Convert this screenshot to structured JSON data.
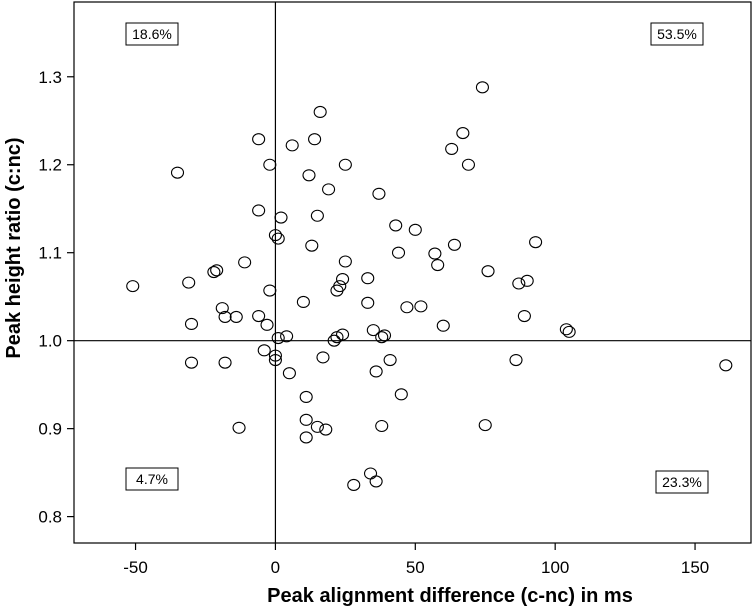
{
  "chart_data": {
    "type": "scatter",
    "xlabel": "Peak alignment difference (c-nc) in ms",
    "ylabel": "Peak height ratio (c:nc)",
    "xlim": [
      -72,
      170
    ],
    "ylim": [
      0.77,
      1.385
    ],
    "xticks": [
      "-50",
      "0",
      "50",
      "100",
      "150"
    ],
    "yticks": [
      "0.8",
      "0.9",
      "1.0",
      "1.1",
      "1.2",
      "1.3"
    ],
    "reference_lines": {
      "x": 0,
      "y": 1.0
    },
    "quadrant_labels": {
      "top_left": "18.6%",
      "top_right": "53.5%",
      "bottom_left": "4.7%",
      "bottom_right": "23.3%"
    },
    "marker": "open-circle",
    "grid": false,
    "points": [
      [
        -51,
        1.062
      ],
      [
        -35,
        1.191
      ],
      [
        -31,
        1.066
      ],
      [
        -30,
        1.019
      ],
      [
        -30,
        0.975
      ],
      [
        -22,
        1.078
      ],
      [
        -21,
        1.08
      ],
      [
        -19,
        1.037
      ],
      [
        -18,
        1.027
      ],
      [
        -18,
        0.975
      ],
      [
        -14,
        1.027
      ],
      [
        -13,
        0.901
      ],
      [
        -11,
        1.089
      ],
      [
        -6,
        1.229
      ],
      [
        -6,
        1.148
      ],
      [
        -6,
        1.028
      ],
      [
        -4,
        0.989
      ],
      [
        -3,
        1.018
      ],
      [
        -2,
        1.057
      ],
      [
        -2,
        1.2
      ],
      [
        0,
        1.12
      ],
      [
        0,
        0.983
      ],
      [
        0,
        0.978
      ],
      [
        1,
        1.003
      ],
      [
        1,
        1.116
      ],
      [
        2,
        1.14
      ],
      [
        4,
        1.005
      ],
      [
        5,
        0.963
      ],
      [
        6,
        1.222
      ],
      [
        10,
        1.044
      ],
      [
        11,
        0.936
      ],
      [
        11,
        0.91
      ],
      [
        11,
        0.89
      ],
      [
        12,
        1.188
      ],
      [
        13,
        1.108
      ],
      [
        14,
        1.229
      ],
      [
        15,
        0.902
      ],
      [
        15,
        1.142
      ],
      [
        16,
        1.26
      ],
      [
        17,
        0.981
      ],
      [
        18,
        0.899
      ],
      [
        19,
        1.172
      ],
      [
        21,
        1.0
      ],
      [
        22,
        1.057
      ],
      [
        22,
        1.004
      ],
      [
        23,
        1.062
      ],
      [
        24,
        1.007
      ],
      [
        24,
        1.07
      ],
      [
        25,
        1.09
      ],
      [
        25,
        1.2
      ],
      [
        28,
        0.836
      ],
      [
        33,
        1.043
      ],
      [
        33,
        1.071
      ],
      [
        34,
        0.849
      ],
      [
        35,
        1.012
      ],
      [
        36,
        0.84
      ],
      [
        36,
        0.965
      ],
      [
        37,
        1.167
      ],
      [
        38,
        1.004
      ],
      [
        38,
        0.903
      ],
      [
        39,
        1.006
      ],
      [
        41,
        0.978
      ],
      [
        43,
        1.131
      ],
      [
        44,
        1.1
      ],
      [
        45,
        0.939
      ],
      [
        47,
        1.038
      ],
      [
        50,
        1.126
      ],
      [
        52,
        1.039
      ],
      [
        57,
        1.099
      ],
      [
        58,
        1.086
      ],
      [
        60,
        1.017
      ],
      [
        63,
        1.218
      ],
      [
        64,
        1.109
      ],
      [
        67,
        1.236
      ],
      [
        69,
        1.2
      ],
      [
        74,
        1.288
      ],
      [
        75,
        0.904
      ],
      [
        76,
        1.079
      ],
      [
        86,
        0.978
      ],
      [
        87,
        1.065
      ],
      [
        89,
        1.028
      ],
      [
        90,
        1.068
      ],
      [
        93,
        1.112
      ],
      [
        104,
        1.013
      ],
      [
        105,
        1.01
      ],
      [
        161,
        0.972
      ]
    ]
  }
}
